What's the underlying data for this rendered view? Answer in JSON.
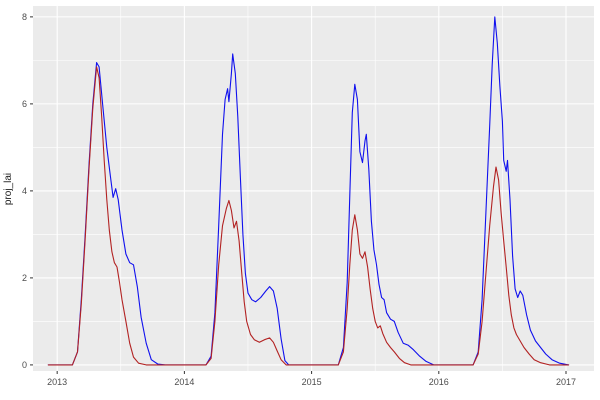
{
  "chart_data": {
    "type": "line",
    "title": "",
    "xlabel": "",
    "ylabel": "proj_lai",
    "legend": "none",
    "panel_bg": "#EBEBEB",
    "grid_color": "#FFFFFF",
    "tick_color": "#333333",
    "x_domain": [
      2012.81,
      2017.22
    ],
    "y_domain": [
      -0.14,
      8.25
    ],
    "x_ticks": {
      "values": [
        2013,
        2014,
        2015,
        2016,
        2017
      ],
      "labels": [
        "2013",
        "2014",
        "2015",
        "2016",
        "2017"
      ]
    },
    "y_ticks": {
      "values": [
        0,
        2,
        4,
        6,
        8
      ],
      "labels": [
        "0",
        "2",
        "4",
        "6",
        "8"
      ]
    },
    "x_minor": [
      2013.5,
      2014.5,
      2015.5,
      2016.5
    ],
    "y_minor": [
      1,
      3,
      5,
      7
    ],
    "series": [
      {
        "name": "blue-series",
        "color": "#1010EE",
        "points": [
          [
            2012.93,
            0
          ],
          [
            2013.12,
            0
          ],
          [
            2013.16,
            0.3
          ],
          [
            2013.19,
            1.5
          ],
          [
            2013.22,
            3.0
          ],
          [
            2013.25,
            4.6
          ],
          [
            2013.28,
            6.0
          ],
          [
            2013.31,
            6.95
          ],
          [
            2013.33,
            6.85
          ],
          [
            2013.36,
            5.9
          ],
          [
            2013.39,
            5.0
          ],
          [
            2013.42,
            4.3
          ],
          [
            2013.44,
            3.85
          ],
          [
            2013.46,
            4.05
          ],
          [
            2013.48,
            3.8
          ],
          [
            2013.51,
            3.1
          ],
          [
            2013.54,
            2.55
          ],
          [
            2013.57,
            2.35
          ],
          [
            2013.6,
            2.3
          ],
          [
            2013.63,
            1.8
          ],
          [
            2013.66,
            1.1
          ],
          [
            2013.7,
            0.5
          ],
          [
            2013.74,
            0.12
          ],
          [
            2013.79,
            0.02
          ],
          [
            2013.85,
            0
          ],
          [
            2014.17,
            0
          ],
          [
            2014.21,
            0.2
          ],
          [
            2014.24,
            1.2
          ],
          [
            2014.27,
            3.2
          ],
          [
            2014.3,
            5.3
          ],
          [
            2014.32,
            6.1
          ],
          [
            2014.34,
            6.35
          ],
          [
            2014.35,
            6.05
          ],
          [
            2014.37,
            6.7
          ],
          [
            2014.38,
            7.15
          ],
          [
            2014.4,
            6.7
          ],
          [
            2014.42,
            5.7
          ],
          [
            2014.44,
            4.3
          ],
          [
            2014.46,
            3.0
          ],
          [
            2014.48,
            2.1
          ],
          [
            2014.5,
            1.65
          ],
          [
            2014.53,
            1.5
          ],
          [
            2014.56,
            1.45
          ],
          [
            2014.6,
            1.55
          ],
          [
            2014.64,
            1.7
          ],
          [
            2014.67,
            1.8
          ],
          [
            2014.7,
            1.7
          ],
          [
            2014.73,
            1.3
          ],
          [
            2014.76,
            0.6
          ],
          [
            2014.79,
            0.1
          ],
          [
            2014.82,
            0
          ],
          [
            2015.21,
            0
          ],
          [
            2015.25,
            0.4
          ],
          [
            2015.28,
            1.9
          ],
          [
            2015.3,
            3.9
          ],
          [
            2015.32,
            5.8
          ],
          [
            2015.34,
            6.45
          ],
          [
            2015.36,
            6.1
          ],
          [
            2015.38,
            4.9
          ],
          [
            2015.4,
            4.65
          ],
          [
            2015.42,
            5.15
          ],
          [
            2015.43,
            5.3
          ],
          [
            2015.45,
            4.5
          ],
          [
            2015.47,
            3.3
          ],
          [
            2015.49,
            2.65
          ],
          [
            2015.51,
            2.3
          ],
          [
            2015.53,
            1.85
          ],
          [
            2015.55,
            1.55
          ],
          [
            2015.57,
            1.5
          ],
          [
            2015.59,
            1.2
          ],
          [
            2015.62,
            1.05
          ],
          [
            2015.65,
            1.0
          ],
          [
            2015.68,
            0.75
          ],
          [
            2015.72,
            0.5
          ],
          [
            2015.76,
            0.45
          ],
          [
            2015.8,
            0.35
          ],
          [
            2015.85,
            0.2
          ],
          [
            2015.9,
            0.08
          ],
          [
            2015.96,
            0
          ],
          [
            2016.27,
            0
          ],
          [
            2016.31,
            0.3
          ],
          [
            2016.34,
            1.5
          ],
          [
            2016.37,
            3.5
          ],
          [
            2016.4,
            5.5
          ],
          [
            2016.42,
            6.9
          ],
          [
            2016.44,
            8.0
          ],
          [
            2016.46,
            7.4
          ],
          [
            2016.48,
            6.4
          ],
          [
            2016.5,
            5.6
          ],
          [
            2016.51,
            4.7
          ],
          [
            2016.53,
            4.45
          ],
          [
            2016.54,
            4.7
          ],
          [
            2016.56,
            3.8
          ],
          [
            2016.58,
            2.5
          ],
          [
            2016.6,
            1.75
          ],
          [
            2016.62,
            1.55
          ],
          [
            2016.64,
            1.7
          ],
          [
            2016.66,
            1.6
          ],
          [
            2016.69,
            1.15
          ],
          [
            2016.72,
            0.8
          ],
          [
            2016.76,
            0.55
          ],
          [
            2016.8,
            0.4
          ],
          [
            2016.84,
            0.25
          ],
          [
            2016.89,
            0.12
          ],
          [
            2016.95,
            0.04
          ],
          [
            2017.02,
            0
          ]
        ]
      },
      {
        "name": "red-series",
        "color": "#B22222",
        "points": [
          [
            2012.93,
            0
          ],
          [
            2013.12,
            0
          ],
          [
            2013.16,
            0.3
          ],
          [
            2013.19,
            1.4
          ],
          [
            2013.22,
            2.9
          ],
          [
            2013.25,
            4.5
          ],
          [
            2013.28,
            5.9
          ],
          [
            2013.31,
            6.85
          ],
          [
            2013.33,
            6.6
          ],
          [
            2013.35,
            5.7
          ],
          [
            2013.37,
            4.7
          ],
          [
            2013.39,
            3.8
          ],
          [
            2013.41,
            3.1
          ],
          [
            2013.43,
            2.6
          ],
          [
            2013.45,
            2.35
          ],
          [
            2013.47,
            2.25
          ],
          [
            2013.49,
            1.9
          ],
          [
            2013.51,
            1.5
          ],
          [
            2013.54,
            1.0
          ],
          [
            2013.57,
            0.5
          ],
          [
            2013.6,
            0.18
          ],
          [
            2013.64,
            0.04
          ],
          [
            2013.7,
            0
          ],
          [
            2014.17,
            0
          ],
          [
            2014.21,
            0.15
          ],
          [
            2014.24,
            1.0
          ],
          [
            2014.27,
            2.3
          ],
          [
            2014.3,
            3.2
          ],
          [
            2014.33,
            3.6
          ],
          [
            2014.35,
            3.78
          ],
          [
            2014.37,
            3.55
          ],
          [
            2014.39,
            3.15
          ],
          [
            2014.41,
            3.3
          ],
          [
            2014.43,
            2.85
          ],
          [
            2014.45,
            2.15
          ],
          [
            2014.47,
            1.45
          ],
          [
            2014.49,
            1.0
          ],
          [
            2014.52,
            0.7
          ],
          [
            2014.55,
            0.58
          ],
          [
            2014.59,
            0.52
          ],
          [
            2014.63,
            0.58
          ],
          [
            2014.67,
            0.62
          ],
          [
            2014.7,
            0.52
          ],
          [
            2014.73,
            0.32
          ],
          [
            2014.76,
            0.12
          ],
          [
            2014.8,
            0
          ],
          [
            2015.21,
            0
          ],
          [
            2015.25,
            0.3
          ],
          [
            2015.28,
            1.3
          ],
          [
            2015.3,
            2.3
          ],
          [
            2015.32,
            3.1
          ],
          [
            2015.34,
            3.45
          ],
          [
            2015.36,
            3.1
          ],
          [
            2015.38,
            2.55
          ],
          [
            2015.4,
            2.45
          ],
          [
            2015.42,
            2.6
          ],
          [
            2015.44,
            2.25
          ],
          [
            2015.46,
            1.75
          ],
          [
            2015.48,
            1.3
          ],
          [
            2015.5,
            1.0
          ],
          [
            2015.52,
            0.85
          ],
          [
            2015.54,
            0.9
          ],
          [
            2015.56,
            0.72
          ],
          [
            2015.59,
            0.52
          ],
          [
            2015.62,
            0.4
          ],
          [
            2015.65,
            0.3
          ],
          [
            2015.69,
            0.15
          ],
          [
            2015.73,
            0.05
          ],
          [
            2015.78,
            0
          ],
          [
            2016.27,
            0
          ],
          [
            2016.31,
            0.25
          ],
          [
            2016.34,
            1.0
          ],
          [
            2016.37,
            2.1
          ],
          [
            2016.4,
            3.2
          ],
          [
            2016.43,
            4.1
          ],
          [
            2016.45,
            4.55
          ],
          [
            2016.47,
            4.25
          ],
          [
            2016.49,
            3.5
          ],
          [
            2016.51,
            2.85
          ],
          [
            2016.53,
            2.25
          ],
          [
            2016.55,
            1.6
          ],
          [
            2016.57,
            1.15
          ],
          [
            2016.59,
            0.85
          ],
          [
            2016.61,
            0.7
          ],
          [
            2016.64,
            0.55
          ],
          [
            2016.67,
            0.4
          ],
          [
            2016.71,
            0.25
          ],
          [
            2016.75,
            0.12
          ],
          [
            2016.8,
            0.05
          ],
          [
            2016.87,
            0
          ],
          [
            2017.02,
            0
          ]
        ]
      }
    ]
  }
}
